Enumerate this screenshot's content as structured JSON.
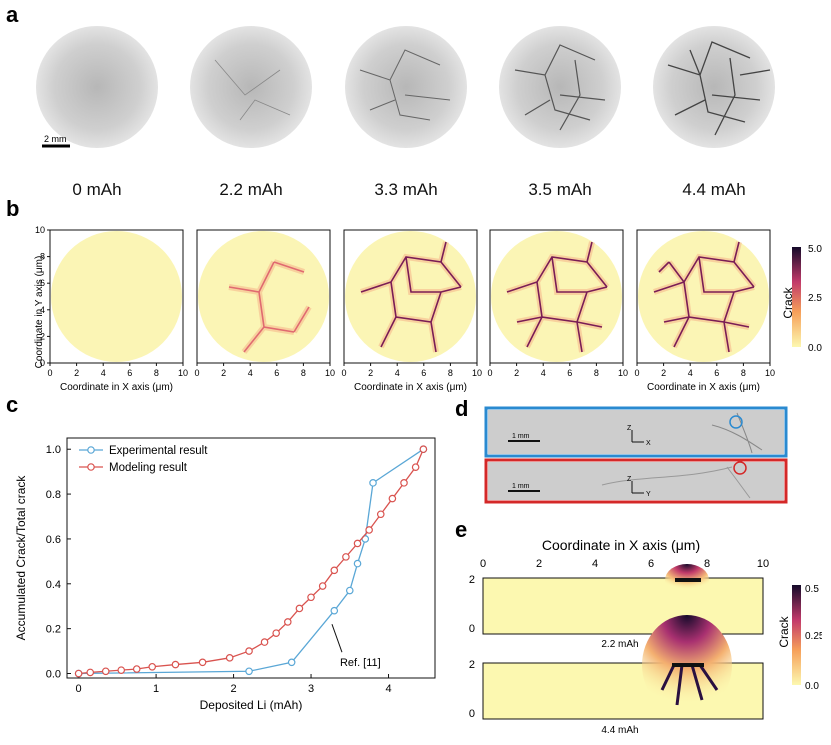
{
  "panels": {
    "a": "a",
    "b": "b",
    "c": "c",
    "d": "d",
    "e": "e"
  },
  "panel_a": {
    "scale_bar": "2 mm",
    "capacities": [
      "0 mAh",
      "2.2 mAh",
      "3.3 mAh",
      "3.5 mAh",
      "4.4 mAh"
    ]
  },
  "panel_b": {
    "ylabel": "Coordinate in Y axis (μm)",
    "xlabel": "Coordinate in X axis (μm)",
    "x_ticks": [
      "0",
      "2",
      "4",
      "6",
      "8",
      "10"
    ],
    "y_ticks": [
      "0",
      "2",
      "4",
      "6",
      "8",
      "10"
    ],
    "colorbar_label": "Crack",
    "colorbar_ticks": [
      "5.0",
      "2.5",
      "0.0"
    ]
  },
  "panel_d": {
    "scale_bar": "1 mm",
    "axis_top": [
      "Z",
      "X"
    ],
    "axis_bottom": [
      "Z",
      "Y"
    ],
    "colors": {
      "top_frame": "#2a8ad0",
      "bottom_frame": "#d42828"
    }
  },
  "panel_e": {
    "xlabel": "Coordinate in X axis (μm)",
    "x_ticks": [
      "0",
      "2",
      "4",
      "6",
      "8",
      "10"
    ],
    "y_ticks": [
      "2",
      "0"
    ],
    "strip_labels": [
      "2.2 mAh",
      "4.4 mAh"
    ],
    "colorbar_label": "Crack",
    "colorbar_ticks": [
      "0.5",
      "0.25",
      "0.0"
    ]
  },
  "chart_data": [
    {
      "type": "line",
      "panel": "c",
      "xlabel": "Deposited Li (mAh)",
      "ylabel": "Accumulated Crack/Total crack",
      "xlim": [
        -0.15,
        4.6
      ],
      "ylim": [
        -0.02,
        1.05
      ],
      "x_ticks": [
        0,
        1,
        2,
        3,
        4
      ],
      "y_ticks": [
        0.0,
        0.2,
        0.4,
        0.6,
        0.8,
        1.0
      ],
      "y_tick_labels": [
        "0.0",
        "0.2",
        "0.4",
        "0.6",
        "0.8",
        "1.0"
      ],
      "legend_position": "top-left",
      "annotation": "Ref. [11]",
      "series": [
        {
          "name": "Experimental result",
          "color": "#5aa7d6",
          "x": [
            0,
            2.2,
            2.75,
            3.3,
            3.5,
            3.6,
            3.7,
            3.8,
            4.45
          ],
          "y": [
            0.0,
            0.01,
            0.05,
            0.28,
            0.37,
            0.49,
            0.6,
            0.85,
            1.0
          ]
        },
        {
          "name": "Modeling result",
          "color": "#d9534f",
          "x": [
            0,
            0.15,
            0.35,
            0.55,
            0.75,
            0.95,
            1.25,
            1.6,
            1.95,
            2.2,
            2.4,
            2.55,
            2.7,
            2.85,
            3.0,
            3.15,
            3.3,
            3.45,
            3.6,
            3.75,
            3.9,
            4.05,
            4.2,
            4.35,
            4.45
          ],
          "y": [
            0.0,
            0.005,
            0.01,
            0.015,
            0.02,
            0.03,
            0.04,
            0.05,
            0.07,
            0.1,
            0.14,
            0.18,
            0.23,
            0.29,
            0.34,
            0.39,
            0.46,
            0.52,
            0.58,
            0.64,
            0.71,
            0.78,
            0.85,
            0.92,
            1.0
          ]
        }
      ]
    }
  ]
}
